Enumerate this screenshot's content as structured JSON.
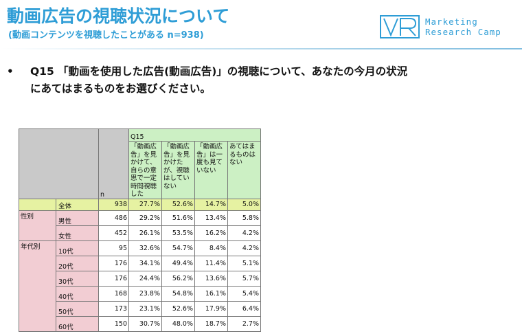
{
  "header": {
    "title": "動画広告の視聴状況について",
    "subtitle": "(動画コンテンツを視聴したことがある n=938)",
    "logo_line1": "Marketing",
    "logo_line2": "Research Camp"
  },
  "question": {
    "bullet": "•",
    "line1": "Q15 「動画を使用した広告(動画広告)」の視聴について、あなたの今月の状況",
    "line2": "にあてはまるものをお選びください。"
  },
  "table": {
    "q_label": "Q15",
    "n_label": "n",
    "columns": [
      "「動画広告」を見かけて、自らの意思で一定時間視聴した",
      "「動画広告」を見かけたが、視聴はしていない",
      "「動画広告」は一度も見ていない",
      "あてはまるものはない"
    ],
    "total": {
      "label": "全体",
      "n": "938",
      "v": [
        "27.7%",
        "52.6%",
        "14.7%",
        "5.0%"
      ]
    },
    "gender_label": "性別",
    "gender": [
      {
        "label": "男性",
        "n": "486",
        "v": [
          "29.2%",
          "51.6%",
          "13.4%",
          "5.8%"
        ]
      },
      {
        "label": "女性",
        "n": "452",
        "v": [
          "26.1%",
          "53.5%",
          "16.2%",
          "4.2%"
        ]
      }
    ],
    "age_label": "年代別",
    "age": [
      {
        "label": "10代",
        "n": "95",
        "v": [
          "32.6%",
          "54.7%",
          "8.4%",
          "4.2%"
        ]
      },
      {
        "label": "20代",
        "n": "176",
        "v": [
          "34.1%",
          "49.4%",
          "11.4%",
          "5.1%"
        ]
      },
      {
        "label": "30代",
        "n": "176",
        "v": [
          "24.4%",
          "56.2%",
          "13.6%",
          "5.7%"
        ]
      },
      {
        "label": "40代",
        "n": "168",
        "v": [
          "23.8%",
          "54.8%",
          "16.1%",
          "5.4%"
        ]
      },
      {
        "label": "50代",
        "n": "173",
        "v": [
          "23.1%",
          "52.6%",
          "17.9%",
          "6.4%"
        ]
      },
      {
        "label": "60代",
        "n": "150",
        "v": [
          "30.7%",
          "48.0%",
          "18.7%",
          "2.7%"
        ]
      }
    ]
  },
  "colors": {
    "accent": "#2e9dd6",
    "header_green": "#ccf0c4",
    "total_yellow": "#e6f2a2",
    "label_pink": "#f2cdd3",
    "corner_gray": "#c9c9c9"
  }
}
